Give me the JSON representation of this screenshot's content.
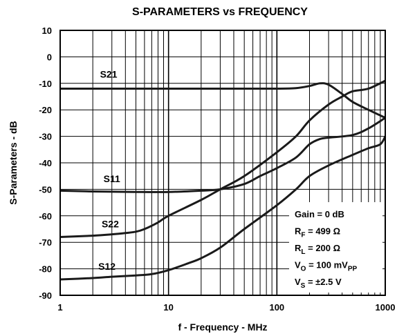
{
  "chart_data": {
    "type": "line",
    "title": "S-PARAMETERS vs FREQUENCY",
    "xlabel": "f - Frequency - MHz",
    "ylabel": "S-Parameters - dB",
    "x_scale": "log",
    "xlim": [
      1,
      1000
    ],
    "ylim": [
      -90,
      10
    ],
    "x_ticks": [
      "1",
      "10",
      "100",
      "1000"
    ],
    "y_ticks": [
      "10",
      "0",
      "-10",
      "-20",
      "-30",
      "-40",
      "-50",
      "-60",
      "-70",
      "-80",
      "-90"
    ],
    "grid": true,
    "series": [
      {
        "name": "S21",
        "x": [
          1,
          2,
          5,
          10,
          20,
          50,
          100,
          150,
          200,
          250,
          300,
          400,
          500,
          700,
          1000
        ],
        "y": [
          -12,
          -12,
          -12,
          -12,
          -12,
          -12,
          -12,
          -11.8,
          -11,
          -10,
          -10.5,
          -14,
          -17,
          -20,
          -23
        ]
      },
      {
        "name": "S11",
        "x": [
          1,
          2,
          5,
          10,
          20,
          30,
          50,
          70,
          100,
          150,
          200,
          250,
          300,
          500,
          700,
          1000
        ],
        "y": [
          -50.5,
          -50.8,
          -51,
          -51,
          -50.5,
          -50,
          -48,
          -45,
          -42,
          -38,
          -33,
          -31,
          -30.5,
          -29.5,
          -27,
          -23
        ]
      },
      {
        "name": "S22",
        "x": [
          1,
          2,
          3,
          4,
          5,
          6,
          8,
          10,
          20,
          30,
          50,
          100,
          150,
          200,
          300,
          400,
          500,
          700,
          1000
        ],
        "y": [
          -68,
          -67.5,
          -67,
          -66.5,
          -66,
          -65,
          -62.5,
          -60,
          -54,
          -50,
          -45,
          -36,
          -30,
          -24,
          -18,
          -15,
          -13,
          -12,
          -9
        ]
      },
      {
        "name": "S12",
        "x": [
          1,
          2,
          3,
          5,
          7,
          10,
          15,
          20,
          30,
          50,
          100,
          150,
          200,
          300,
          500,
          700,
          900,
          1000
        ],
        "y": [
          -84,
          -83.5,
          -83,
          -82.5,
          -82,
          -80.5,
          -78,
          -76,
          -72,
          -65,
          -56,
          -50,
          -45,
          -41,
          -37,
          -34.5,
          -33,
          -30
        ]
      }
    ],
    "curve_labels": [
      {
        "text": "S21",
        "x": 2.8,
        "y": -6.5
      },
      {
        "text": "S11",
        "x": 3.0,
        "y": -46
      },
      {
        "text": "S22",
        "x": 2.9,
        "y": -63
      },
      {
        "text": "S12",
        "x": 2.7,
        "y": -79
      }
    ],
    "conditions": [
      {
        "main": "Gain = 0 dB",
        "sub": "",
        "rest": ""
      },
      {
        "main": "R",
        "sub": "F",
        "rest": " = 499 Ω"
      },
      {
        "main": "R",
        "sub": "L",
        "rest": " = 200 Ω"
      },
      {
        "main": "V",
        "sub": "O",
        "rest": " = 100 mV",
        "sub2": "PP"
      },
      {
        "main": "V",
        "sub": "S",
        "rest": " = ±2.5 V"
      }
    ],
    "colors": {
      "line": "#1a1a1a",
      "grid": "#000000",
      "background": "#ffffff"
    }
  }
}
